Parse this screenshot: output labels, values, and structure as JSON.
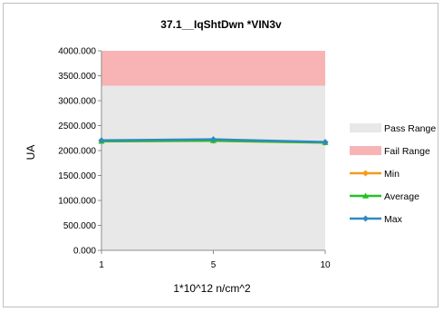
{
  "chart_data": {
    "type": "line",
    "title": "37.1__IqShtDwn  *VIN3v",
    "xlabel": "1*10^12 n/cm^2",
    "ylabel": "UA",
    "categories": [
      "1",
      "5",
      "10"
    ],
    "ylim": [
      0,
      4000
    ],
    "yticks": [
      "0.000",
      "500.000",
      "1000.000",
      "1500.000",
      "2000.000",
      "2500.000",
      "3000.000",
      "3500.000",
      "4000.000"
    ],
    "pass_range": [
      0,
      3300
    ],
    "fail_range": [
      3300,
      4000
    ],
    "series": [
      {
        "name": "Min",
        "values": [
          2185,
          2195,
          2160
        ],
        "color": "#f59a1b",
        "marker": "diamond"
      },
      {
        "name": "Average",
        "values": [
          2188,
          2200,
          2162
        ],
        "color": "#22c322",
        "marker": "triangle"
      },
      {
        "name": "Max",
        "values": [
          2205,
          2225,
          2170
        ],
        "color": "#2e8bc0",
        "marker": "diamond"
      }
    ],
    "legend": [
      {
        "label": "Pass Range",
        "kind": "area",
        "color": "#e8e8e8"
      },
      {
        "label": "Fail Range",
        "kind": "area",
        "color": "#f8b4b4"
      },
      {
        "label": "Min",
        "kind": "line",
        "color": "#f59a1b",
        "marker": "diamond"
      },
      {
        "label": "Average",
        "kind": "line",
        "color": "#22c322",
        "marker": "triangle"
      },
      {
        "label": "Max",
        "kind": "line",
        "color": "#2e8bc0",
        "marker": "diamond"
      }
    ],
    "legend_position": "right",
    "grid": false
  }
}
